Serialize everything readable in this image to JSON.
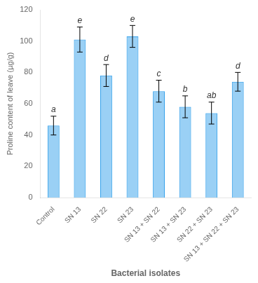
{
  "chart_data": {
    "type": "bar",
    "categories": [
      "Control",
      "SN 13",
      "SN 22",
      "SN 23",
      "SN 13 + SN 22",
      "SN 13 + SN 23",
      "SN 22 + SN 23",
      "SN 13 + SN 22 + SN 23"
    ],
    "values": [
      46,
      101,
      78,
      103,
      68,
      58,
      54,
      74
    ],
    "errors": [
      6,
      8,
      7,
      7,
      7,
      7,
      7,
      6
    ],
    "annotations": [
      "a",
      "e",
      "d",
      "e",
      "c",
      "b",
      "ab",
      "d"
    ],
    "ylabel": "Proline content of leave (µg/g)",
    "xlabel": "Bacterial isolates",
    "ylim": [
      0,
      120
    ],
    "yticks": [
      0,
      20,
      40,
      60,
      80,
      100,
      120
    ],
    "grid": false
  }
}
